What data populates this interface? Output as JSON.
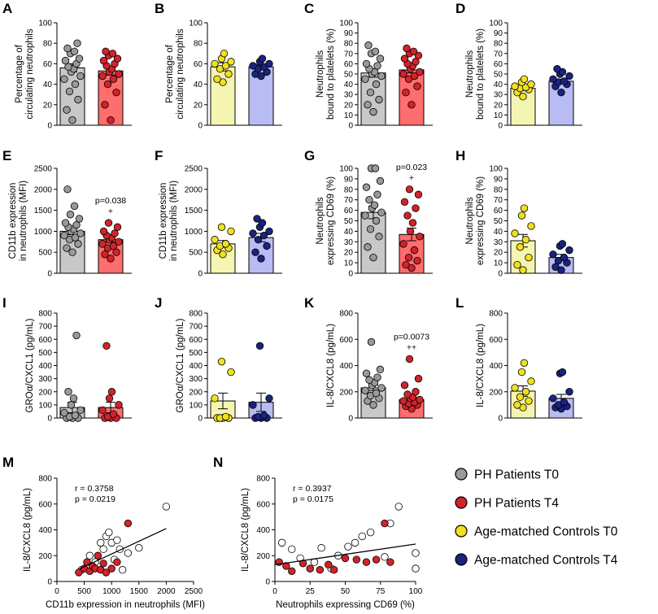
{
  "colors": {
    "ph_fill": "#c8c8c8",
    "ph_dot": "#999999",
    "ph_t4_fill": "#ff6e6e",
    "ph_t4_dot": "#d2232a",
    "ctrl_t0_fill": "#f5f5b2",
    "ctrl_t0_dot": "#f0e01e",
    "ctrl_t4_fill": "#b8bcf2",
    "ctrl_t4_dot": "#1a237e"
  },
  "legend": {
    "items": [
      {
        "label": "PH Patients T0",
        "color": "#999999"
      },
      {
        "label": "PH Patients T4",
        "color": "#d2232a"
      },
      {
        "label": "Age-matched Controls T0",
        "color": "#f0e01e"
      },
      {
        "label": "Age-matched Controls T4",
        "color": "#1a237e"
      }
    ]
  },
  "chart_data": [
    {
      "id": "A",
      "type": "bar",
      "ylabel": "Percentage of circulating neutrophils",
      "ylim": [
        0,
        100
      ],
      "yticks": [
        0,
        20,
        40,
        60,
        80,
        100
      ],
      "annotation": "",
      "groups": [
        "PH Patients T0",
        "PH Patients T4"
      ],
      "means": [
        56,
        53
      ],
      "sems": [
        4,
        4
      ],
      "points": [
        [
          5,
          15,
          25,
          33,
          40,
          45,
          48,
          52,
          55,
          57,
          60,
          63,
          65,
          70,
          72,
          75,
          80
        ],
        [
          5,
          20,
          32,
          40,
          45,
          48,
          50,
          52,
          55,
          58,
          60,
          63,
          65,
          68,
          70,
          72
        ]
      ]
    },
    {
      "id": "B",
      "type": "bar",
      "ylabel": "Percentage of circulating neutrophils",
      "ylim": [
        0,
        100
      ],
      "yticks": [
        0,
        20,
        40,
        60,
        80,
        100
      ],
      "annotation": "",
      "groups": [
        "Age-matched Controls T0",
        "Age-matched Controls T4"
      ],
      "means": [
        57,
        57
      ],
      "sems": [
        4,
        2
      ],
      "points": [
        [
          42,
          45,
          50,
          55,
          58,
          60,
          62,
          65,
          70
        ],
        [
          48,
          50,
          52,
          55,
          57,
          58,
          60,
          62,
          65
        ]
      ]
    },
    {
      "id": "C",
      "type": "bar",
      "ylabel": "Neutrophils bound to platelets (%)",
      "ylim": [
        0,
        100
      ],
      "yticks": [
        0,
        10,
        20,
        30,
        40,
        50,
        60,
        70,
        80,
        90,
        100
      ],
      "annotation": "",
      "groups": [
        "PH Patients T0",
        "PH Patients T4"
      ],
      "means": [
        51,
        54
      ],
      "sems": [
        4,
        3
      ],
      "points": [
        [
          13,
          20,
          25,
          32,
          40,
          45,
          48,
          50,
          52,
          55,
          58,
          60,
          65,
          70,
          72,
          78
        ],
        [
          20,
          32,
          38,
          45,
          48,
          50,
          52,
          55,
          58,
          60,
          62,
          65,
          68,
          70,
          72,
          75
        ]
      ]
    },
    {
      "id": "D",
      "type": "bar",
      "ylabel": "Neutrophils bound to platelets (%)",
      "ylim": [
        0,
        100
      ],
      "yticks": [
        0,
        10,
        20,
        30,
        40,
        50,
        60,
        70,
        80,
        90,
        100
      ],
      "annotation": "",
      "groups": [
        "Age-matched Controls T0",
        "Age-matched Controls T4"
      ],
      "means": [
        36,
        43
      ],
      "sems": [
        2,
        2
      ],
      "points": [
        [
          28,
          32,
          35,
          36,
          37,
          38,
          40,
          42,
          45
        ],
        [
          32,
          38,
          40,
          42,
          43,
          45,
          48,
          50,
          52,
          55
        ]
      ]
    },
    {
      "id": "E",
      "type": "bar",
      "ylabel": "CD11b expression in neutrophils (MFI)",
      "ylim": [
        0,
        2500
      ],
      "yticks": [
        0,
        500,
        1000,
        1500,
        2000,
        2500
      ],
      "annotation": "p=0.038\n+",
      "groups": [
        "PH Patients T0",
        "PH Patients T4"
      ],
      "means": [
        1000,
        800
      ],
      "sems": [
        80,
        60
      ],
      "points": [
        [
          500,
          600,
          700,
          800,
          850,
          900,
          950,
          1000,
          1050,
          1100,
          1150,
          1200,
          1300,
          1400,
          1600,
          2000
        ],
        [
          350,
          450,
          500,
          600,
          650,
          700,
          750,
          800,
          850,
          900,
          950,
          1000,
          1100,
          1200
        ]
      ]
    },
    {
      "id": "F",
      "type": "bar",
      "ylabel": "CD11b expression in neutrophils (MFI)",
      "ylim": [
        0,
        2500
      ],
      "yticks": [
        0,
        500,
        1000,
        1500,
        2000,
        2500
      ],
      "annotation": "",
      "groups": [
        "Age-matched Controls T0",
        "Age-matched Controls T4"
      ],
      "means": [
        700,
        850
      ],
      "sems": [
        80,
        100
      ],
      "points": [
        [
          450,
          550,
          600,
          650,
          700,
          800,
          1000,
          1100
        ],
        [
          350,
          500,
          650,
          800,
          900,
          950,
          1000,
          1100,
          1200,
          1300
        ]
      ]
    },
    {
      "id": "G",
      "type": "bar",
      "ylabel": "Neutrophils expressing CD69 (%)",
      "ylim": [
        0,
        100
      ],
      "yticks": [
        0,
        10,
        20,
        30,
        40,
        50,
        60,
        70,
        80,
        90,
        100
      ],
      "annotation": "p=0.023\n+",
      "groups": [
        "PH Patients T0",
        "PH Patients T4"
      ],
      "means": [
        58,
        37
      ],
      "sems": [
        6,
        6
      ],
      "points": [
        [
          15,
          25,
          35,
          42,
          50,
          55,
          58,
          62,
          65,
          70,
          75,
          82,
          88,
          100,
          100
        ],
        [
          5,
          8,
          12,
          15,
          22,
          28,
          35,
          40,
          48,
          55,
          62,
          68,
          75,
          80
        ]
      ]
    },
    {
      "id": "H",
      "type": "bar",
      "ylabel": "Neutrophils expressing CD69 (%)",
      "ylim": [
        0,
        100
      ],
      "yticks": [
        0,
        10,
        20,
        30,
        40,
        50,
        60,
        70,
        80,
        90,
        100
      ],
      "annotation": "",
      "groups": [
        "Age-matched Controls T0",
        "Age-matched Controls T4"
      ],
      "means": [
        31,
        15
      ],
      "sems": [
        6,
        3
      ],
      "points": [
        [
          3,
          8,
          15,
          25,
          32,
          38,
          45,
          55,
          62
        ],
        [
          3,
          6,
          10,
          12,
          15,
          18,
          22,
          26,
          28
        ]
      ]
    },
    {
      "id": "I",
      "type": "bar",
      "ylabel": "GROα/CXCL1 (pg/mL)",
      "ylim": [
        0,
        800
      ],
      "yticks": [
        0,
        100,
        200,
        300,
        400,
        500,
        600,
        700,
        800
      ],
      "annotation": "",
      "groups": [
        "PH Patients T0",
        "PH Patients T4"
      ],
      "means": [
        80,
        80
      ],
      "sems": [
        40,
        40
      ],
      "points": [
        [
          0,
          0,
          0,
          10,
          20,
          40,
          60,
          100,
          150,
          200,
          630
        ],
        [
          0,
          0,
          0,
          10,
          30,
          60,
          100,
          150,
          200,
          550
        ]
      ]
    },
    {
      "id": "J",
      "type": "bar",
      "ylabel": "GROα/CXCL1 (pg/mL)",
      "ylim": [
        0,
        800
      ],
      "yticks": [
        0,
        100,
        200,
        300,
        400,
        500,
        600,
        700,
        800
      ],
      "annotation": "",
      "groups": [
        "Age-matched Controls T0",
        "Age-matched Controls T4"
      ],
      "means": [
        130,
        120
      ],
      "sems": [
        60,
        70
      ],
      "points": [
        [
          0,
          0,
          0,
          0,
          10,
          150,
          350,
          430
        ],
        [
          0,
          0,
          0,
          10,
          20,
          100,
          150,
          550
        ]
      ]
    },
    {
      "id": "K",
      "type": "bar",
      "ylabel": "IL-8/CXCL8 (pg/mL)",
      "ylim": [
        0,
        800
      ],
      "yticks": [
        0,
        200,
        400,
        600,
        800
      ],
      "annotation": "p=0.0073\n++",
      "groups": [
        "PH Patients T0",
        "PH Patients T4"
      ],
      "means": [
        230,
        140
      ],
      "sems": [
        20,
        20
      ],
      "points": [
        [
          100,
          130,
          150,
          170,
          190,
          210,
          230,
          250,
          270,
          290,
          310,
          340,
          370,
          580
        ],
        [
          70,
          90,
          100,
          110,
          120,
          130,
          140,
          150,
          160,
          180,
          200,
          250,
          300,
          450
        ]
      ]
    },
    {
      "id": "L",
      "type": "bar",
      "ylabel": "IL-8/CXCL8 (pg/mL)",
      "ylim": [
        0,
        800
      ],
      "yticks": [
        0,
        200,
        400,
        600,
        800
      ],
      "annotation": "",
      "groups": [
        "Age-matched Controls T0",
        "Age-matched Controls T4"
      ],
      "means": [
        205,
        150
      ],
      "sems": [
        40,
        30
      ],
      "points": [
        [
          80,
          100,
          130,
          160,
          200,
          230,
          280,
          350,
          420
        ],
        [
          70,
          80,
          90,
          100,
          120,
          150,
          200,
          340,
          350
        ]
      ]
    },
    {
      "id": "M",
      "type": "scatter",
      "xlabel": "CD11b expression in neutrophils (MFI)",
      "ylabel": "IL-8/CXCL8 (pg/mL)",
      "xlim": [
        0,
        2500
      ],
      "ylim": [
        0,
        800
      ],
      "xticks": [
        0,
        500,
        1000,
        1500,
        2000,
        2500
      ],
      "yticks": [
        0,
        200,
        400,
        600,
        800
      ],
      "stats": [
        "r = 0.3758",
        "p = 0.0219"
      ],
      "fit": {
        "x": [
          400,
          2000
        ],
        "y": [
          95,
          410
        ]
      },
      "series": [
        {
          "name": "PH Patients T0",
          "x": [
            450,
            600,
            700,
            800,
            850,
            900,
            950,
            1000,
            1050,
            1100,
            1150,
            1200,
            1300,
            1500,
            2000
          ],
          "y": [
            90,
            200,
            150,
            300,
            250,
            350,
            380,
            300,
            170,
            320,
            250,
            90,
            220,
            260,
            580
          ]
        },
        {
          "name": "PH Patients T4",
          "x": [
            400,
            500,
            550,
            600,
            650,
            700,
            750,
            800,
            850,
            900,
            1000,
            1100,
            1300
          ],
          "y": [
            70,
            100,
            150,
            80,
            120,
            100,
            200,
            90,
            140,
            70,
            100,
            150,
            450
          ]
        }
      ]
    },
    {
      "id": "N",
      "type": "scatter",
      "xlabel": "Neutrophils expressing CD69 (%)",
      "ylabel": "IL-8/CXCL8 (pg/mL)",
      "xlim": [
        0,
        100
      ],
      "ylim": [
        0,
        800
      ],
      "xticks": [
        0,
        25,
        50,
        75,
        100
      ],
      "yticks": [
        0,
        200,
        400,
        600,
        800
      ],
      "stats": [
        "r = 0.3937",
        "p = 0.0175"
      ],
      "fit": {
        "x": [
          0,
          100
        ],
        "y": [
          130,
          290
        ]
      },
      "series": [
        {
          "name": "PH Patients T0",
          "x": [
            5,
            12,
            18,
            28,
            33,
            40,
            45,
            52,
            57,
            62,
            68,
            78,
            82,
            88,
            100,
            100
          ],
          "y": [
            300,
            250,
            180,
            150,
            260,
            100,
            200,
            270,
            300,
            350,
            380,
            190,
            450,
            580,
            220,
            100
          ]
        },
        {
          "name": "PH Patients T4",
          "x": [
            3,
            8,
            12,
            20,
            25,
            32,
            38,
            42,
            50,
            58,
            65,
            72,
            78,
            82
          ],
          "y": [
            150,
            120,
            80,
            140,
            100,
            90,
            130,
            90,
            180,
            170,
            150,
            170,
            450,
            150
          ]
        }
      ]
    }
  ]
}
